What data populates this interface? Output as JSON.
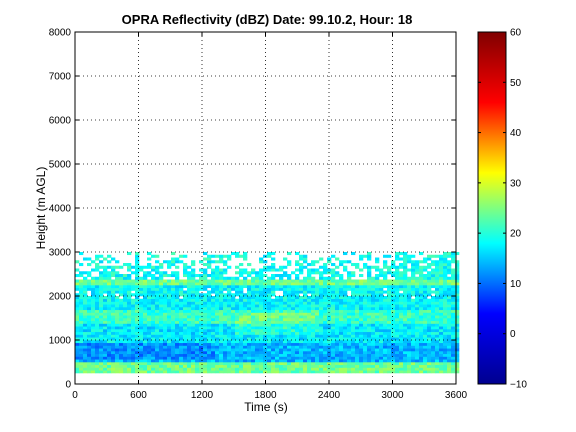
{
  "chart_data": {
    "type": "heatmap",
    "title": "OPRA Reflectivity (dBZ)  Date: 99.10.2, Hour: 18",
    "xlabel": "Time (s)",
    "ylabel": "Height (m AGL)",
    "xlim": [
      0,
      3600
    ],
    "ylim": [
      0,
      8000
    ],
    "xticks": [
      0,
      600,
      1200,
      1800,
      2400,
      3000,
      3600
    ],
    "yticks": [
      0,
      1000,
      2000,
      3000,
      4000,
      5000,
      6000,
      7000,
      8000
    ],
    "grid": true,
    "colorbar": {
      "colormap": "jet",
      "range": [
        -10,
        60
      ],
      "ticks": [
        -10,
        0,
        10,
        20,
        30,
        40,
        50,
        60
      ],
      "stops": [
        "#00008f",
        "#0000ff",
        "#00ffff",
        "#ffff00",
        "#ff0000",
        "#800000"
      ]
    },
    "field": {
      "x_range": [
        0,
        3600
      ],
      "echo_base_m": 250,
      "solid_layer_top_m": 2350,
      "broken_layer_top_m": 3000,
      "bands": [
        {
          "bottom": 250,
          "top": 500,
          "dbz": 24
        },
        {
          "bottom": 500,
          "top": 900,
          "dbz": 14
        },
        {
          "bottom": 900,
          "top": 1350,
          "dbz": 17
        },
        {
          "bottom": 1350,
          "top": 1650,
          "dbz": 21
        },
        {
          "bottom": 1650,
          "top": 2200,
          "dbz": 18
        },
        {
          "bottom": 2200,
          "top": 2350,
          "dbz": 24
        },
        {
          "bottom": 2350,
          "top": 3000,
          "dbz": 19
        }
      ]
    }
  }
}
